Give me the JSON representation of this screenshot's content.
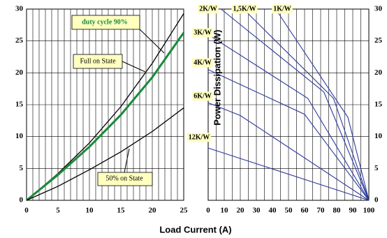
{
  "xlabel": "Load Current (A)",
  "chart_data": [
    {
      "type": "line",
      "xlim": [
        0,
        25
      ],
      "xticks": [
        0,
        5,
        10,
        15,
        20,
        25
      ],
      "xgrid": [
        1,
        2,
        3,
        4,
        6,
        7,
        8,
        9,
        11,
        12,
        13,
        14,
        16,
        17,
        18,
        19,
        21,
        22,
        23,
        24
      ],
      "ylim": [
        0,
        30
      ],
      "yticks": [
        0,
        5,
        10,
        15,
        20,
        25,
        30
      ],
      "grid": true,
      "series": [
        {
          "name": "Full on State",
          "color": "#000000",
          "x": [
            0,
            5,
            10,
            15,
            20,
            25
          ],
          "values": [
            0,
            4.2,
            9,
            14.7,
            21.5,
            29.3
          ]
        },
        {
          "name": "duty cycle 90%",
          "color": "#1a8a3a",
          "x": [
            0,
            5,
            10,
            15,
            20,
            25
          ],
          "values": [
            0,
            4,
            8.4,
            13.4,
            19.3,
            26.3
          ]
        },
        {
          "name": "50% on State",
          "color": "#000000",
          "x": [
            0,
            5,
            10,
            15,
            20,
            25
          ],
          "values": [
            0,
            2.2,
            4.8,
            7.6,
            10.8,
            14.5
          ]
        }
      ]
    },
    {
      "type": "line",
      "ylabel": "Power Dissipation (W)",
      "xlim": [
        0,
        100
      ],
      "xticks": [
        0,
        10,
        20,
        30,
        40,
        50,
        60,
        70,
        80,
        90,
        100
      ],
      "xgrid": [
        5,
        15,
        25,
        35,
        45,
        55,
        65,
        75,
        85,
        95
      ],
      "ylim": [
        0,
        30
      ],
      "yticks": [
        0,
        5,
        10,
        15,
        20,
        25,
        30
      ],
      "grid": true,
      "series": [
        {
          "name": "2K/W",
          "color": "#2b3a9e",
          "x": [
            8,
            72,
            100
          ],
          "values": [
            30,
            17,
            0
          ]
        },
        {
          "name": "1,5K/W",
          "color": "#2b3a9e",
          "x": [
            22,
            78,
            100
          ],
          "values": [
            30,
            16,
            0
          ]
        },
        {
          "name": "1K/W",
          "color": "#2b3a9e",
          "x": [
            42,
            87,
            100
          ],
          "values": [
            30,
            13,
            0
          ]
        },
        {
          "name": "3K/W",
          "color": "#2b3a9e",
          "x": [
            0,
            62,
            100
          ],
          "values": [
            26,
            16,
            0
          ]
        },
        {
          "name": "4K/W",
          "color": "#2b3a9e",
          "x": [
            0,
            60,
            100
          ],
          "values": [
            20.5,
            13.5,
            0
          ]
        },
        {
          "name": "6K/W",
          "color": "#2b3a9e",
          "x": [
            0,
            20,
            100
          ],
          "values": [
            15.3,
            13.3,
            0
          ]
        },
        {
          "name": "12K/W",
          "color": "#2b3a9e",
          "x": [
            0,
            100
          ],
          "values": [
            8.2,
            0
          ]
        }
      ]
    }
  ]
}
